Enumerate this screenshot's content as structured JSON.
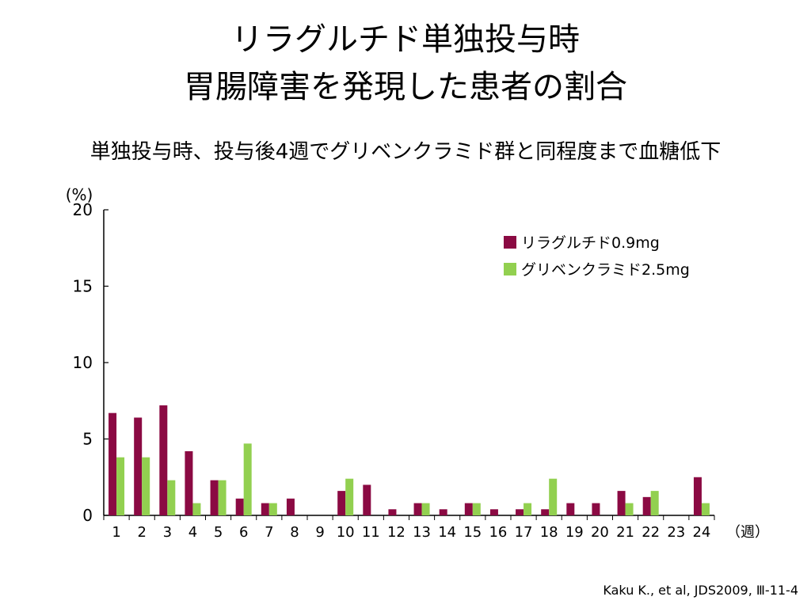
{
  "title_line1": "リラグルチド単独投与時",
  "title_line2": "胃腸障害を発現した患者の割合",
  "subtitle": "単独投与時、投与後4週でグリベンクラミド群と同程度まで血糖低下",
  "citation": "Kaku K., et al, JDS2009, Ⅲ-11-4",
  "chart_data": {
    "type": "bar",
    "ylabel": "(%)",
    "xlabel": "（週）",
    "ylim": [
      0,
      20
    ],
    "yticks": [
      0,
      5,
      10,
      15,
      20
    ],
    "categories": [
      "1",
      "2",
      "3",
      "4",
      "5",
      "6",
      "7",
      "8",
      "9",
      "10",
      "11",
      "12",
      "13",
      "14",
      "15",
      "16",
      "17",
      "18",
      "19",
      "20",
      "21",
      "22",
      "23",
      "24"
    ],
    "series": [
      {
        "name": "リラグルチド0.9mg",
        "color": "#8b0a43",
        "values": [
          6.7,
          6.4,
          7.2,
          4.2,
          2.3,
          1.1,
          0.8,
          1.1,
          0,
          1.6,
          2.0,
          0.4,
          0.8,
          0.4,
          0.8,
          0.4,
          0.4,
          0.4,
          0.8,
          0.8,
          1.6,
          1.2,
          0,
          2.5
        ]
      },
      {
        "name": "グリベンクラミド2.5mg",
        "color": "#92d050",
        "values": [
          3.8,
          3.8,
          2.3,
          0.8,
          2.3,
          4.7,
          0.8,
          0,
          0,
          2.4,
          0,
          0,
          0.8,
          0,
          0.8,
          0,
          0.8,
          2.4,
          0,
          0,
          0.8,
          1.6,
          0,
          0.8
        ]
      }
    ],
    "legend_position": "top-right",
    "grid": false
  }
}
